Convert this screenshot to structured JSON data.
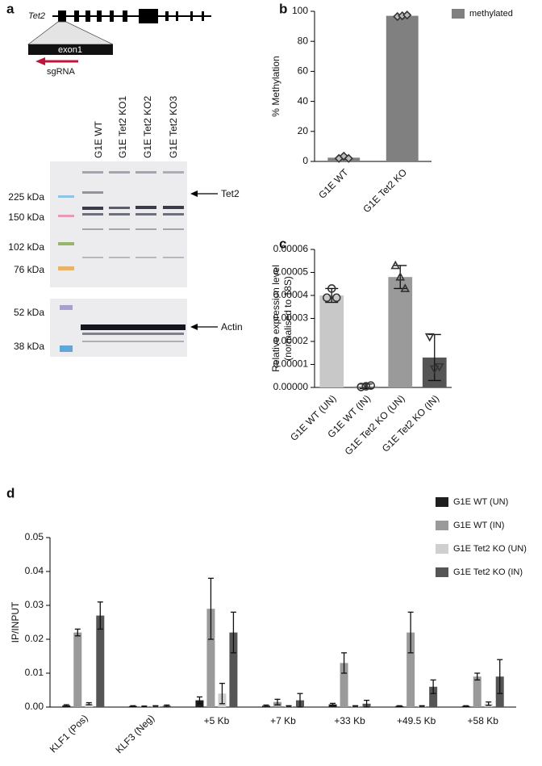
{
  "figure_a": {
    "panel": "a",
    "gene": "Tet2",
    "exon": "exon1",
    "guide": "sgRNA",
    "lanes": [
      "G1E WT",
      "G1E Tet2 KO1",
      "G1E Tet2 KO2",
      "G1E Tet2 KO3"
    ],
    "markers": [
      "225 kDa",
      "150 kDa",
      "102 kDa",
      "76 kDa",
      "52 kDa",
      "38 kDa"
    ],
    "bands": [
      "Tet2",
      "Actin"
    ]
  },
  "chart_data": [
    {
      "panel": "b",
      "type": "bar",
      "ylabel": "% Methylation",
      "categories": [
        "G1E WT",
        "G1E Tet2 KO"
      ],
      "series": [
        {
          "name": "methylated",
          "color": "#808080",
          "values": [
            2.5,
            97
          ],
          "errors": [
            1,
            0.5
          ],
          "points": [
            [
              2,
              3.5,
              2
            ],
            [
              96.5,
              97,
              97.5
            ]
          ]
        }
      ],
      "marker": "diamond",
      "ylim": [
        0,
        100
      ],
      "yticks": [
        0,
        20,
        40,
        60,
        80,
        100
      ],
      "legend": "top-right"
    },
    {
      "panel": "c",
      "type": "bar",
      "ylabel": [
        "Relative expression level",
        "(normalised to 18S)"
      ],
      "categories": [
        "G1E WT (UN)",
        "G1E WT (IN)",
        "G1E Tet2 KO (UN)",
        "G1E Tet2 KO (IN)"
      ],
      "values": [
        4e-05,
        5e-07,
        4.8e-05,
        1.3e-05
      ],
      "errors": [
        3e-06,
        1e-06,
        5e-06,
        1e-05
      ],
      "points": [
        [
          3.9e-05,
          4.3e-05,
          3.9e-05
        ],
        [
          2e-07,
          5e-07,
          8e-07
        ],
        [
          5.3e-05,
          4.8e-05,
          4.3e-05
        ],
        [
          2.2e-05,
          8e-06,
          9e-06
        ]
      ],
      "colors": [
        "#c8c8c8",
        "#9a9a9a",
        "#9a9a9a",
        "#555555"
      ],
      "markers": [
        "circle",
        "circle",
        "triangle",
        "triangle-down"
      ],
      "ylim": [
        0,
        6e-05
      ],
      "yticks": [
        {
          "value": 0,
          "label": "0.00000"
        },
        {
          "value": 1e-05,
          "label": "0.00001"
        },
        {
          "value": 2e-05,
          "label": "0.00002"
        },
        {
          "value": 3e-05,
          "label": "0.00003"
        },
        {
          "value": 4e-05,
          "label": "0.00004"
        },
        {
          "value": 5e-05,
          "label": "0.00005"
        },
        {
          "value": 6e-05,
          "label": "0.00006"
        }
      ]
    },
    {
      "panel": "d",
      "type": "bar",
      "ylabel": "IP/INPUT",
      "categories": [
        "KLF1 (Pos)",
        "KLF3 (Neg)",
        "+5 Kb",
        "+7 Kb",
        "+33 Kb",
        "+49.5 Kb",
        "+58 Kb"
      ],
      "series": [
        {
          "name": "G1E WT (UN)",
          "color": "#1e1e1e",
          "values": [
            0.0005,
            0.0003,
            0.002,
            0.0004,
            0.0008,
            0.0003,
            0.0003
          ],
          "errors": [
            0.0002,
            0.0001,
            0.001,
            0.0002,
            0.0003,
            0.0001,
            0.0001
          ]
        },
        {
          "name": "G1E WT (IN)",
          "color": "#9a9a9a",
          "values": [
            0.022,
            0.0002,
            0.029,
            0.0015,
            0.013,
            0.022,
            0.009
          ],
          "errors": [
            0.001,
            0.0001,
            0.009,
            0.0008,
            0.003,
            0.006,
            0.001
          ]
        },
        {
          "name": "G1E Tet2 KO (UN)",
          "color": "#cfcfcf",
          "values": [
            0.001,
            0.0003,
            0.004,
            0.0003,
            0.0003,
            0.0003,
            0.001
          ],
          "errors": [
            0.0003,
            0.0001,
            0.003,
            0.0001,
            0.0001,
            0.0001,
            0.0005
          ]
        },
        {
          "name": "G1E Tet2 KO (IN)",
          "color": "#555555",
          "values": [
            0.027,
            0.0004,
            0.022,
            0.002,
            0.001,
            0.006,
            0.009
          ],
          "errors": [
            0.004,
            0.0002,
            0.006,
            0.002,
            0.001,
            0.002,
            0.005
          ]
        }
      ],
      "ylim": [
        0,
        0.05
      ],
      "yticks": [
        {
          "value": 0,
          "label": "0.00"
        },
        {
          "value": 0.01,
          "label": "0.01"
        },
        {
          "value": 0.02,
          "label": "0.02"
        },
        {
          "value": 0.03,
          "label": "0.03"
        },
        {
          "value": 0.04,
          "label": "0.04"
        },
        {
          "value": 0.05,
          "label": "0.05"
        }
      ],
      "legend": "top-right"
    }
  ]
}
